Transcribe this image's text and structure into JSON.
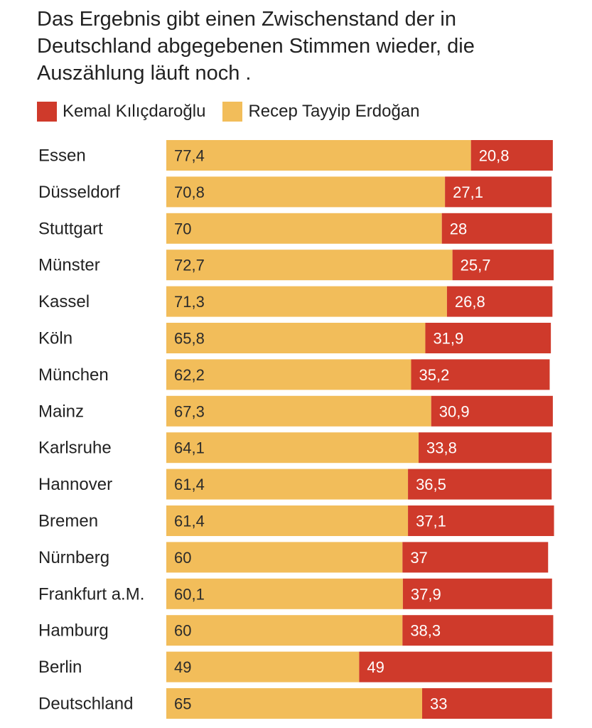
{
  "title": "Das Ergebnis gibt einen Zwischenstand der in Deutschland abgegebenen Stimmen wieder, die Auszählung läuft noch .",
  "legend": [
    {
      "name": "Kemal Kılıçdaroğlu",
      "color": "#cf3a2b"
    },
    {
      "name": "Recep Tayyip Erdoğan",
      "color": "#f2bd5a"
    }
  ],
  "chart_data": {
    "type": "bar",
    "orientation": "horizontal",
    "stacked": true,
    "title": "Das Ergebnis gibt einen Zwischenstand der in Deutschland abgegebenen Stimmen wieder, die Auszählung läuft noch .",
    "categories": [
      "Essen",
      "Düsseldorf",
      "Stuttgart",
      "Münster",
      "Kassel",
      "Köln",
      "München",
      "Mainz",
      "Karlsruhe",
      "Hannover",
      "Bremen",
      "Nürnberg",
      "Frankfurt a.M.",
      "Hamburg",
      "Berlin",
      "Deutschland"
    ],
    "series": [
      {
        "name": "Recep Tayyip Erdoğan",
        "color": "#f2bd5a",
        "values": [
          77.4,
          70.8,
          70,
          72.7,
          71.3,
          65.8,
          62.2,
          67.3,
          64.1,
          61.4,
          61.4,
          60,
          60.1,
          60,
          49,
          65
        ],
        "labels": [
          "77,4",
          "70,8",
          "70",
          "72,7",
          "71,3",
          "65,8",
          "62,2",
          "67,3",
          "64,1",
          "61,4",
          "61,4",
          "60",
          "60,1",
          "60",
          "49",
          "65"
        ]
      },
      {
        "name": "Kemal Kılıçdaroğlu",
        "color": "#cf3a2b",
        "values": [
          20.8,
          27.1,
          28,
          25.7,
          26.8,
          31.9,
          35.2,
          30.9,
          33.8,
          36.5,
          37.1,
          37,
          37.9,
          38.3,
          49,
          33
        ],
        "labels": [
          "20,8",
          "27,1",
          "28",
          "25,7",
          "26,8",
          "31,9",
          "35,2",
          "30,9",
          "33,8",
          "36,5",
          "37,1",
          "37",
          "37,9",
          "38,3",
          "49",
          "33"
        ]
      }
    ],
    "xlim": [
      0,
      98.4
    ],
    "legend_position": "top-left",
    "grid": false
  }
}
